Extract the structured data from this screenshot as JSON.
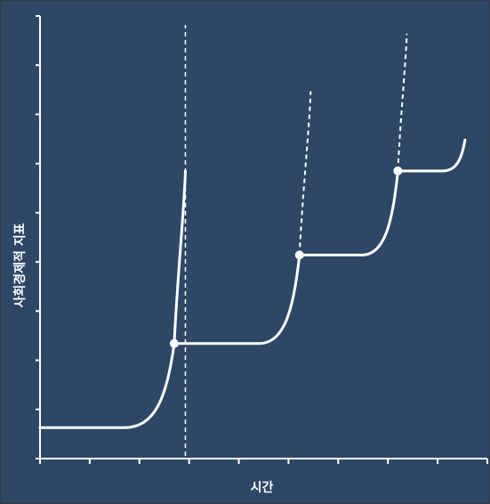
{
  "chart_data": {
    "type": "line",
    "title": "",
    "xlabel": "시간",
    "ylabel": "사회경제적 지표",
    "x_ticks": 9,
    "y_ticks": 9,
    "series": [
      {
        "stages": [
          {
            "plateau_start": 0.0,
            "plateau_y": 0.07,
            "takeoff_start": 0.19,
            "transition_x": 0.3,
            "transition_y": 0.26,
            "peak_x": 0.325,
            "peak_y": 0.65
          },
          {
            "plateau_start": 0.3,
            "plateau_y": 0.26,
            "takeoff_start": 0.49,
            "transition_x": 0.58,
            "transition_y": 0.46,
            "peak_x": 0.605,
            "peak_y": 0.83
          },
          {
            "plateau_start": 0.58,
            "plateau_y": 0.46,
            "takeoff_start": 0.72,
            "transition_x": 0.8,
            "transition_y": 0.65,
            "peak_x": 0.82,
            "peak_y": 0.96
          },
          {
            "plateau_start": 0.8,
            "plateau_y": 0.65,
            "takeoff_start": 0.9,
            "transition_x": 0.95,
            "transition_y": 0.72,
            "peak_x": 0.95,
            "peak_y": 0.72
          }
        ]
      }
    ],
    "transition_points": [
      {
        "x": 0.3,
        "y": 0.26
      },
      {
        "x": 0.58,
        "y": 0.46
      },
      {
        "x": 0.8,
        "y": 0.65
      }
    ],
    "colors": {
      "background": "#2f4766",
      "line": "#ffffff"
    }
  }
}
